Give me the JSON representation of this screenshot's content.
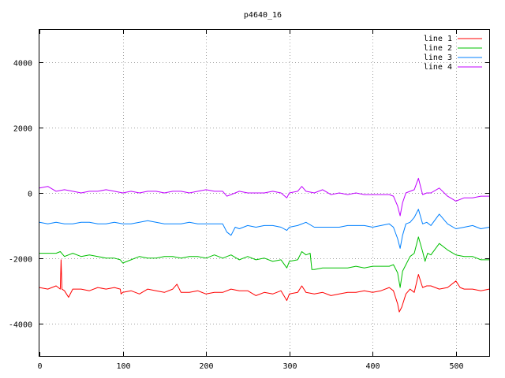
{
  "chart_data": {
    "type": "line",
    "title": "p4640_16",
    "xlabel": "",
    "ylabel": "",
    "xlim": [
      0,
      540
    ],
    "ylim": [
      -5000,
      5000
    ],
    "x_ticks": [
      0,
      100,
      200,
      300,
      400,
      500
    ],
    "y_ticks": [
      -4000,
      -2000,
      0,
      2000,
      4000
    ],
    "grid": true,
    "legend_position": "top-right",
    "series": [
      {
        "name": "line 1",
        "color": "#ff0000",
        "x": [
          0,
          10,
          20,
          25,
          26,
          27,
          30,
          35,
          40,
          50,
          60,
          70,
          80,
          90,
          97,
          98,
          100,
          110,
          120,
          130,
          140,
          150,
          160,
          165,
          170,
          180,
          190,
          200,
          210,
          220,
          230,
          240,
          250,
          260,
          270,
          280,
          290,
          297,
          300,
          310,
          315,
          320,
          330,
          340,
          350,
          360,
          370,
          380,
          390,
          400,
          410,
          420,
          425,
          430,
          432,
          435,
          440,
          445,
          450,
          455,
          460,
          465,
          470,
          480,
          490,
          500,
          505,
          510,
          520,
          530,
          540
        ],
        "y": [
          -2900,
          -2950,
          -2850,
          -2950,
          -2050,
          -2950,
          -3000,
          -3200,
          -2950,
          -2950,
          -3000,
          -2900,
          -2950,
          -2900,
          -2950,
          -3100,
          -3050,
          -3000,
          -3100,
          -2950,
          -3000,
          -3050,
          -2950,
          -2800,
          -3050,
          -3050,
          -3000,
          -3100,
          -3050,
          -3050,
          -2950,
          -3000,
          -3000,
          -3150,
          -3050,
          -3100,
          -3000,
          -3300,
          -3100,
          -3050,
          -2850,
          -3050,
          -3100,
          -3050,
          -3150,
          -3100,
          -3050,
          -3050,
          -3000,
          -3050,
          -3000,
          -2900,
          -3000,
          -3400,
          -3650,
          -3500,
          -3100,
          -2950,
          -3050,
          -2500,
          -2900,
          -2850,
          -2850,
          -2950,
          -2900,
          -2700,
          -2900,
          -2950,
          -2950,
          -3000,
          -2950
        ]
      },
      {
        "name": "line 2",
        "color": "#00c000",
        "x": [
          0,
          10,
          20,
          25,
          30,
          40,
          50,
          60,
          70,
          80,
          90,
          97,
          100,
          110,
          120,
          130,
          140,
          150,
          160,
          170,
          180,
          190,
          200,
          210,
          220,
          230,
          240,
          250,
          260,
          270,
          280,
          290,
          297,
          300,
          310,
          315,
          320,
          325,
          327,
          330,
          340,
          350,
          360,
          370,
          380,
          390,
          400,
          410,
          420,
          425,
          430,
          433,
          436,
          440,
          445,
          450,
          455,
          460,
          463,
          466,
          470,
          480,
          490,
          500,
          510,
          520,
          530,
          540
        ],
        "y": [
          -1850,
          -1850,
          -1850,
          -1800,
          -1950,
          -1850,
          -1950,
          -1900,
          -1950,
          -2000,
          -2000,
          -2050,
          -2150,
          -2050,
          -1950,
          -2000,
          -2000,
          -1950,
          -1950,
          -2000,
          -1950,
          -1950,
          -2000,
          -1900,
          -2000,
          -1900,
          -2050,
          -1950,
          -2050,
          -2000,
          -2100,
          -2050,
          -2300,
          -2100,
          -2050,
          -1800,
          -1900,
          -1850,
          -2350,
          -2350,
          -2300,
          -2300,
          -2300,
          -2300,
          -2250,
          -2300,
          -2250,
          -2250,
          -2250,
          -2200,
          -2450,
          -2900,
          -2400,
          -2200,
          -1950,
          -1850,
          -1350,
          -1800,
          -2100,
          -1850,
          -1900,
          -1550,
          -1750,
          -1900,
          -1950,
          -1950,
          -2050,
          -2050
        ]
      },
      {
        "name": "line 3",
        "color": "#0080ff",
        "x": [
          0,
          10,
          20,
          30,
          40,
          50,
          60,
          70,
          80,
          90,
          100,
          110,
          120,
          130,
          140,
          150,
          160,
          170,
          180,
          190,
          200,
          210,
          220,
          225,
          230,
          235,
          240,
          250,
          260,
          270,
          280,
          290,
          297,
          300,
          310,
          320,
          330,
          340,
          350,
          360,
          370,
          380,
          390,
          400,
          410,
          420,
          425,
          430,
          433,
          436,
          440,
          445,
          450,
          455,
          460,
          465,
          470,
          480,
          490,
          500,
          510,
          520,
          530,
          540
        ],
        "y": [
          -900,
          -950,
          -900,
          -950,
          -950,
          -900,
          -900,
          -950,
          -950,
          -900,
          -950,
          -950,
          -900,
          -850,
          -900,
          -950,
          -950,
          -950,
          -900,
          -950,
          -950,
          -950,
          -950,
          -1200,
          -1300,
          -1050,
          -1100,
          -1000,
          -1050,
          -1000,
          -1000,
          -1050,
          -1150,
          -1050,
          -1000,
          -900,
          -1050,
          -1050,
          -1050,
          -1050,
          -1000,
          -1000,
          -1000,
          -1050,
          -1000,
          -950,
          -1050,
          -1400,
          -1700,
          -1300,
          -950,
          -900,
          -750,
          -500,
          -950,
          -900,
          -1000,
          -650,
          -950,
          -1100,
          -1050,
          -1000,
          -1100,
          -1050
        ]
      },
      {
        "name": "line 4",
        "color": "#c000ff",
        "x": [
          0,
          10,
          20,
          30,
          40,
          50,
          60,
          70,
          80,
          90,
          100,
          110,
          120,
          130,
          140,
          150,
          160,
          170,
          180,
          190,
          200,
          210,
          220,
          225,
          230,
          240,
          250,
          260,
          270,
          280,
          290,
          297,
          300,
          310,
          315,
          320,
          330,
          340,
          350,
          360,
          370,
          380,
          390,
          400,
          410,
          420,
          425,
          430,
          433,
          436,
          440,
          445,
          450,
          455,
          460,
          465,
          470,
          480,
          490,
          500,
          510,
          520,
          530,
          540
        ],
        "y": [
          150,
          200,
          50,
          100,
          50,
          0,
          50,
          50,
          100,
          50,
          0,
          50,
          0,
          50,
          50,
          0,
          50,
          50,
          0,
          50,
          100,
          50,
          50,
          -100,
          -50,
          50,
          0,
          0,
          0,
          50,
          0,
          -150,
          0,
          50,
          200,
          50,
          0,
          100,
          -50,
          0,
          -50,
          0,
          -50,
          -50,
          -50,
          -50,
          -100,
          -400,
          -700,
          -300,
          0,
          50,
          100,
          450,
          -50,
          0,
          0,
          150,
          -100,
          -250,
          -150,
          -150,
          -100,
          -100
        ]
      }
    ]
  }
}
